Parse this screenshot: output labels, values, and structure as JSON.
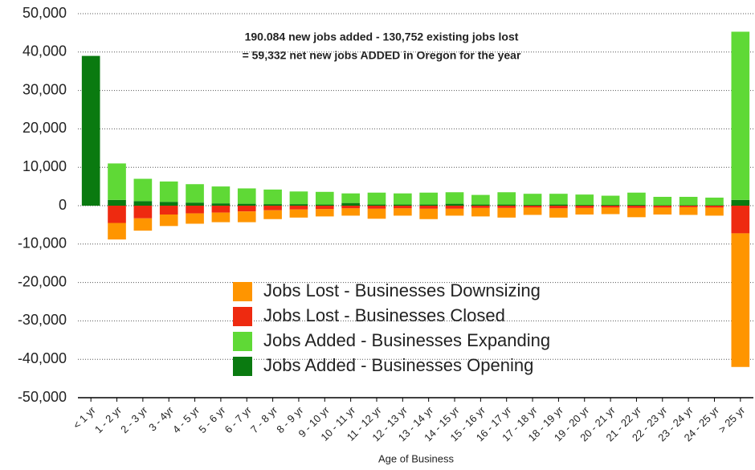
{
  "chart_data": {
    "type": "stacked-bar",
    "annotations": [
      "190.084 new jobs added - 130,752 existing jobs lost",
      "= 59,332 net new jobs ADDED in Oregon for the year"
    ],
    "x_label": "Age of Business",
    "categories": [
      "< 1 yr",
      "1 - 2 yr",
      "2 - 3 yr",
      "3 - 4yr",
      "4 - 5 yr",
      "5 - 6 yr",
      "6 - 7 yr",
      "7 - 8 yr",
      "8 - 9 yr",
      "9 - 10 yr",
      "10 - 11 yr",
      "11 - 12 yr",
      "12 - 13 yr",
      "13 - 14 yr",
      "14 - 15 yr",
      "15 - 16 yr",
      "16 - 17 yr",
      "17 - 18 yr",
      "18 - 19 yr",
      "19 - 20 yr",
      "20 - 21 yr",
      "21 - 22 yr",
      "22 - 23 yr",
      "23 - 24 yr",
      "24 - 25 yr",
      "> 25 yr"
    ],
    "series": [
      {
        "name": "Jobs Lost - Businesses Downsizing",
        "color": "#ff9500",
        "values": [
          0,
          -4300,
          -3200,
          -3000,
          -2700,
          -2500,
          -2800,
          -2300,
          -2100,
          -1900,
          -1900,
          -2600,
          -1900,
          -2700,
          -1800,
          -2200,
          -2500,
          -1900,
          -2400,
          -1700,
          -1700,
          -2400,
          -1800,
          -2000,
          -2100,
          -34800
        ]
      },
      {
        "name": "Jobs Lost - Businesses Closed",
        "color": "#ee2a10",
        "values": [
          0,
          -4500,
          -3300,
          -2300,
          -2000,
          -1800,
          -1500,
          -1200,
          -1000,
          -900,
          -700,
          -800,
          -700,
          -800,
          -800,
          -600,
          -600,
          -500,
          -700,
          -600,
          -500,
          -600,
          -500,
          -400,
          -500,
          -7200
        ]
      },
      {
        "name": "Jobs Added - Businesses Expanding",
        "color": "#5fd936",
        "values": [
          0,
          9500,
          5800,
          5300,
          4800,
          4400,
          4000,
          3800,
          3300,
          3300,
          2500,
          3100,
          2900,
          3100,
          3000,
          2500,
          3200,
          2900,
          2800,
          2700,
          2400,
          3200,
          2200,
          2200,
          2000,
          43800
        ]
      },
      {
        "name": "Jobs Added - Businesses Opening",
        "color": "#0a7a10",
        "values": [
          39000,
          1500,
          1200,
          1000,
          800,
          600,
          500,
          400,
          400,
          300,
          700,
          300,
          300,
          300,
          500,
          300,
          300,
          200,
          300,
          200,
          200,
          200,
          100,
          100,
          100,
          1500
        ]
      }
    ],
    "ylim": [
      -50000,
      50000
    ],
    "yticks": [
      {
        "value": -50000,
        "label": "-50,000"
      },
      {
        "value": -40000,
        "label": "-40,000"
      },
      {
        "value": -30000,
        "label": "-30,000"
      },
      {
        "value": -20000,
        "label": "-20,000"
      },
      {
        "value": -10000,
        "label": "-10,000"
      },
      0,
      {
        "value": 10000,
        "label": "10,000"
      },
      {
        "value": 20000,
        "label": "20,000"
      },
      {
        "value": 30000,
        "label": "30,000"
      },
      {
        "value": 40000,
        "label": "40,000"
      },
      {
        "value": 50000,
        "label": "50,000"
      }
    ],
    "grid": true
  }
}
